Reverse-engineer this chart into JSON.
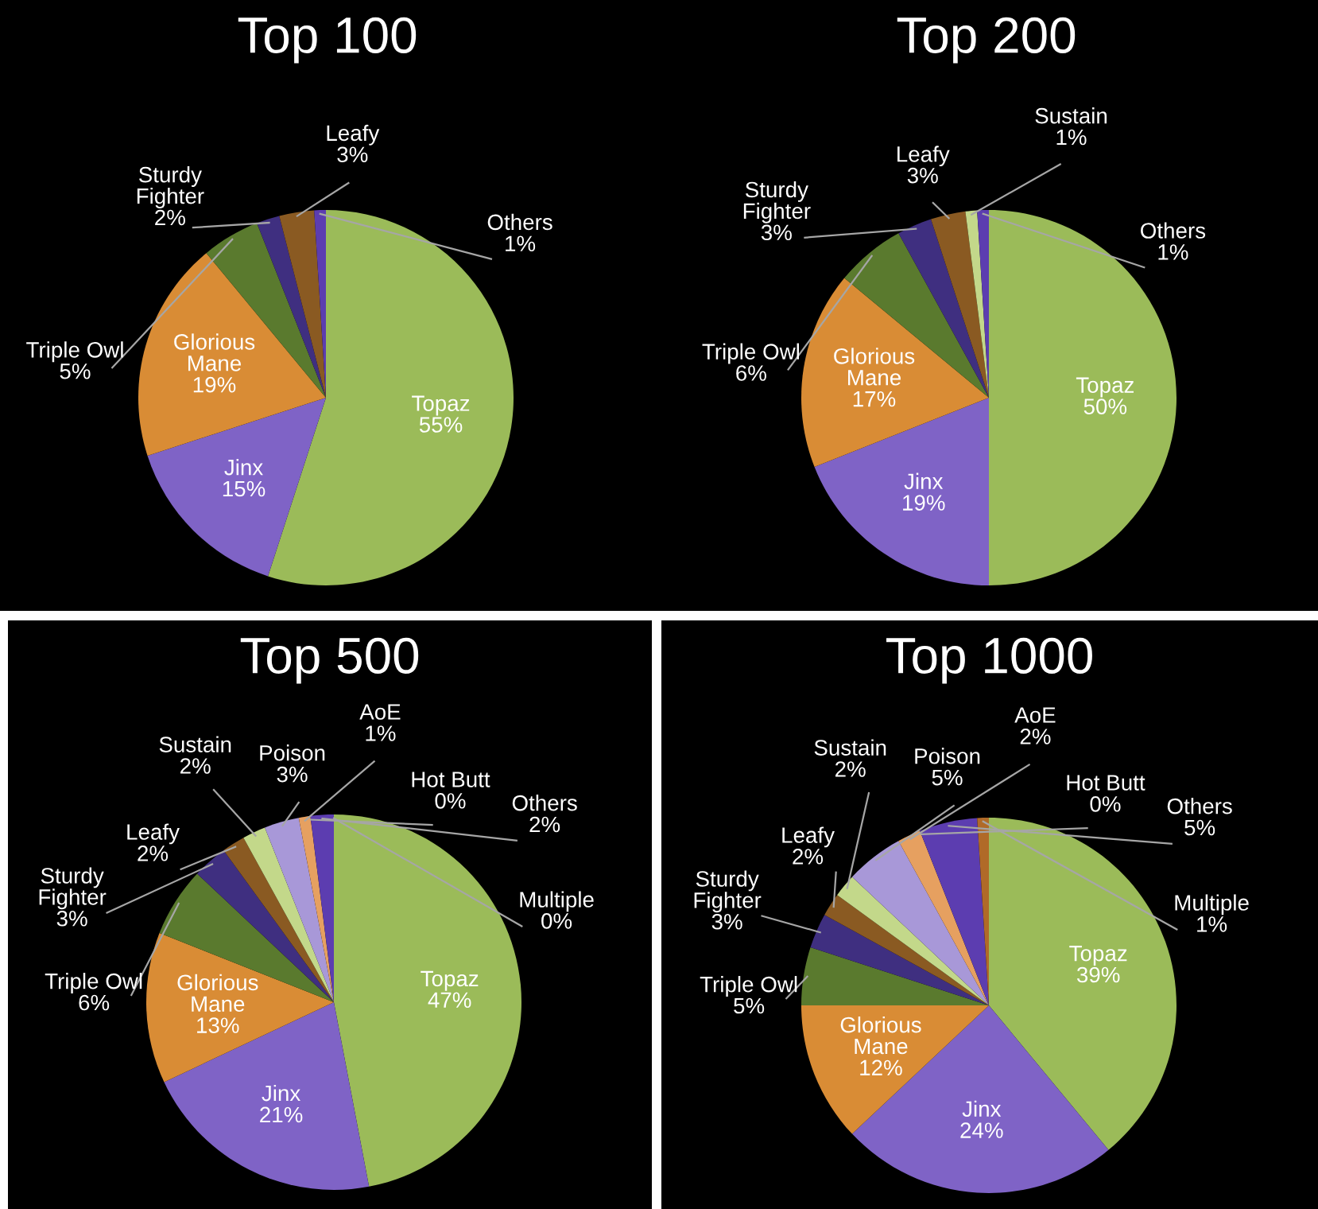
{
  "chart_data": [
    {
      "type": "pie",
      "title": "Top 100",
      "categories": [
        "Topaz",
        "Jinx",
        "Glorious Mane",
        "Triple Owl",
        "Sturdy Fighter",
        "Leafy",
        "Others"
      ],
      "values": [
        55,
        15,
        19,
        5,
        2,
        3,
        1
      ],
      "value_labels": [
        "55%",
        "15%",
        "19%",
        "5%",
        "2%",
        "3%",
        "1%"
      ],
      "colors": [
        "#9bbb59",
        "#7f63c6",
        "#d98c35",
        "#5a7a2e",
        "#3f2f80",
        "#8a5a22",
        "#5c3db0"
      ]
    },
    {
      "type": "pie",
      "title": "Top 200",
      "categories": [
        "Topaz",
        "Jinx",
        "Glorious Mane",
        "Triple Owl",
        "Sturdy Fighter",
        "Leafy",
        "Sustain",
        "Others"
      ],
      "values": [
        50,
        19,
        17,
        6,
        3,
        3,
        1,
        1
      ],
      "value_labels": [
        "50%",
        "19%",
        "17%",
        "6%",
        "3%",
        "3%",
        "1%",
        "1%"
      ],
      "colors": [
        "#9bbb59",
        "#7f63c6",
        "#d98c35",
        "#5a7a2e",
        "#3f2f80",
        "#8a5a22",
        "#c3d88a",
        "#5c3db0"
      ]
    },
    {
      "type": "pie",
      "title": "Top 500",
      "categories": [
        "Topaz",
        "Jinx",
        "Glorious Mane",
        "Triple Owl",
        "Sturdy Fighter",
        "Leafy",
        "Sustain",
        "Poison",
        "AoE",
        "Hot Butt",
        "Others",
        "Multiple"
      ],
      "values": [
        47,
        21,
        13,
        6,
        3,
        2,
        2,
        3,
        1,
        0,
        2,
        0
      ],
      "value_labels": [
        "47%",
        "21%",
        "13%",
        "6%",
        "3%",
        "2%",
        "2%",
        "3%",
        "1%",
        "0%",
        "2%",
        "0%"
      ],
      "colors": [
        "#9bbb59",
        "#7f63c6",
        "#d98c35",
        "#5a7a2e",
        "#3f2f80",
        "#8a5a22",
        "#c3d88a",
        "#a898d8",
        "#e6a060",
        "#6f8f3a",
        "#5c3db0",
        "#b06a28"
      ]
    },
    {
      "type": "pie",
      "title": "Top 1000",
      "categories": [
        "Topaz",
        "Jinx",
        "Glorious Mane",
        "Triple Owl",
        "Sturdy Fighter",
        "Leafy",
        "Sustain",
        "Poison",
        "AoE",
        "Hot Butt",
        "Others",
        "Multiple"
      ],
      "values": [
        39,
        24,
        12,
        5,
        3,
        2,
        2,
        5,
        2,
        0,
        5,
        1
      ],
      "value_labels": [
        "39%",
        "24%",
        "12%",
        "5%",
        "3%",
        "2%",
        "2%",
        "5%",
        "2%",
        "0%",
        "5%",
        "1%"
      ],
      "colors": [
        "#9bbb59",
        "#7f63c6",
        "#d98c35",
        "#5a7a2e",
        "#3f2f80",
        "#8a5a22",
        "#c3d88a",
        "#a898d8",
        "#e6a060",
        "#6f8f3a",
        "#5c3db0",
        "#b06a28"
      ]
    }
  ]
}
